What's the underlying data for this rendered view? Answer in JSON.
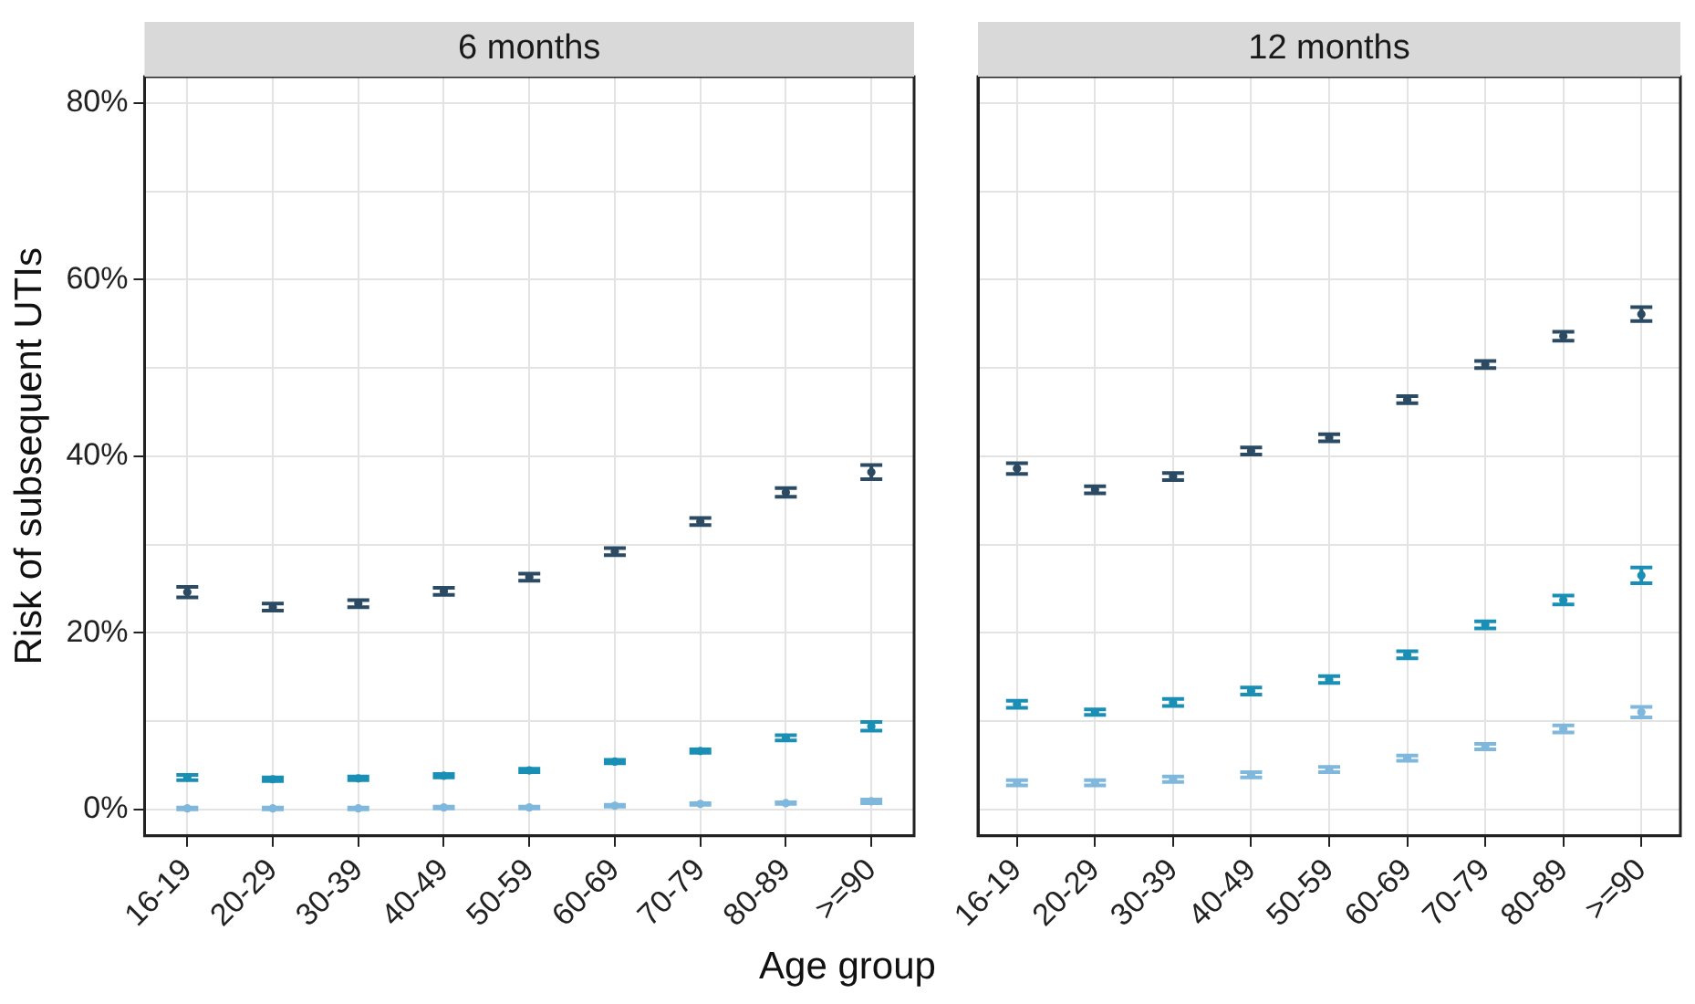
{
  "chart_data": [
    {
      "type": "scatter",
      "title": "6 months",
      "ylabel": "Risk of subsequent UTIs",
      "xlabel": "Age group",
      "marker": "circle",
      "grid": true,
      "legend": false,
      "categories": [
        "16-19",
        "20-29",
        "30-39",
        "40-49",
        "50-59",
        "60-69",
        "70-79",
        "80-89",
        ">=90"
      ],
      "ylim": [
        -3,
        83
      ],
      "yticks": [
        {
          "value": 0,
          "label": "0%"
        },
        {
          "value": 10,
          "label": null
        },
        {
          "value": 20,
          "label": "20%"
        },
        {
          "value": 30,
          "label": null
        },
        {
          "value": 40,
          "label": "40%"
        },
        {
          "value": 50,
          "label": null
        },
        {
          "value": 60,
          "label": "60%"
        },
        {
          "value": 70,
          "label": null
        },
        {
          "value": 80,
          "label": "80%"
        }
      ],
      "series": [
        {
          "color": "#2b4a63",
          "values": [
            24.6,
            22.9,
            23.3,
            24.7,
            26.3,
            29.2,
            32.6,
            35.9,
            38.2
          ],
          "errors": [
            0.6,
            0.4,
            0.4,
            0.4,
            0.4,
            0.4,
            0.4,
            0.5,
            0.8
          ]
        },
        {
          "color": "#1a8fb5",
          "values": [
            3.6,
            3.4,
            3.5,
            3.8,
            4.4,
            5.4,
            6.6,
            8.1,
            9.4
          ],
          "errors": [
            0.3,
            0.2,
            0.2,
            0.2,
            0.2,
            0.2,
            0.2,
            0.3,
            0.5
          ]
        },
        {
          "color": "#7fb8dc",
          "values": [
            0.1,
            0.1,
            0.1,
            0.2,
            0.2,
            0.4,
            0.6,
            0.7,
            0.9
          ],
          "errors": [
            0.1,
            0.1,
            0.1,
            0.1,
            0.1,
            0.1,
            0.1,
            0.1,
            0.2
          ]
        }
      ]
    },
    {
      "type": "scatter",
      "title": "12 months",
      "marker": "circle",
      "grid": true,
      "legend": false,
      "tick_labels": "x",
      "categories": [
        "16-19",
        "20-29",
        "30-39",
        "40-49",
        "50-59",
        "60-69",
        "70-79",
        "80-89",
        ">=90"
      ],
      "ylim": [
        -3,
        83
      ],
      "yticks": [
        {
          "value": 0,
          "label": null
        },
        {
          "value": 10,
          "label": null
        },
        {
          "value": 20,
          "label": null
        },
        {
          "value": 30,
          "label": null
        },
        {
          "value": 40,
          "label": null
        },
        {
          "value": 50,
          "label": null
        },
        {
          "value": 60,
          "label": null
        },
        {
          "value": 70,
          "label": null
        },
        {
          "value": 80,
          "label": null
        }
      ],
      "series": [
        {
          "color": "#2b4a63",
          "values": [
            38.6,
            36.2,
            37.7,
            40.6,
            42.1,
            46.4,
            50.4,
            53.6,
            56.1
          ],
          "errors": [
            0.6,
            0.4,
            0.4,
            0.4,
            0.4,
            0.4,
            0.4,
            0.5,
            0.8
          ]
        },
        {
          "color": "#1a8fb5",
          "values": [
            11.9,
            11.0,
            12.1,
            13.4,
            14.7,
            17.5,
            20.9,
            23.7,
            26.5
          ],
          "errors": [
            0.4,
            0.3,
            0.4,
            0.4,
            0.4,
            0.4,
            0.4,
            0.5,
            0.9
          ]
        },
        {
          "color": "#7fb8dc",
          "values": [
            3.0,
            3.0,
            3.4,
            3.9,
            4.5,
            5.8,
            7.1,
            9.1,
            11.0
          ],
          "errors": [
            0.3,
            0.3,
            0.3,
            0.3,
            0.3,
            0.3,
            0.3,
            0.4,
            0.6
          ]
        }
      ]
    }
  ]
}
